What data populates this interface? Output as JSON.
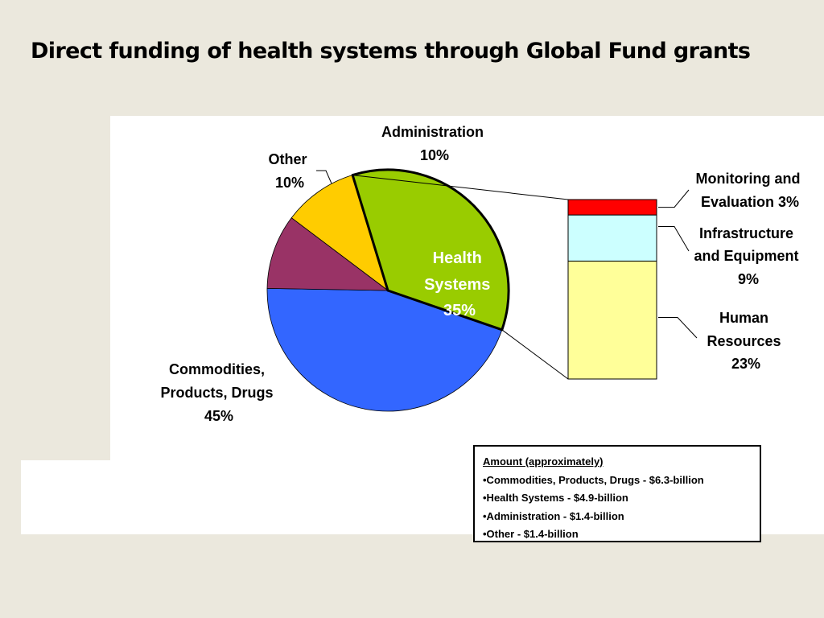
{
  "title": "Direct funding of health systems through Global Fund grants",
  "chart_data": [
    {
      "type": "pie",
      "slices": [
        {
          "name": "Administration",
          "value": 10,
          "label": "10%",
          "color": "#ffcc00"
        },
        {
          "name": "Health Systems",
          "value": 35,
          "label": "35%",
          "color": "#99cc00"
        },
        {
          "name": "Commodities, Products, Drugs",
          "value": 45,
          "label": "45%",
          "color": "#3366ff"
        },
        {
          "name": "Other",
          "value": 10,
          "label": "10%",
          "color": "#993366"
        }
      ]
    },
    {
      "type": "bar",
      "stacked": true,
      "breakdown_of": "Health Systems",
      "series": [
        {
          "name": "Human Resources",
          "value": 23,
          "label": "23%",
          "color": "#ffff99"
        },
        {
          "name": "Infrastructure and Equipment",
          "value": 9,
          "label": "9%",
          "color": "#ccffff"
        },
        {
          "name": "Monitoring and Evaluation",
          "value": 3,
          "label": "3%",
          "color": "#ff0000"
        }
      ]
    }
  ],
  "labels": {
    "admin": [
      "Administration",
      "10%"
    ],
    "other": [
      "Other",
      "10%"
    ],
    "health": [
      "Health",
      "Systems",
      "35%"
    ],
    "commodities": [
      "Commodities,",
      "Products, Drugs",
      "45%"
    ],
    "monitoring": [
      "Monitoring and",
      "Evaluation 3%"
    ],
    "infrastructure": [
      "Infrastructure",
      "and Equipment",
      "9%"
    ],
    "human": [
      "Human",
      "Resources",
      "23%"
    ]
  },
  "amount_box": {
    "header": "Amount (approximately)",
    "items": [
      "•Commodities, Products, Drugs - $6.3-billion",
      "•Health Systems - $4.9-billion",
      "•Administration - $1.4-billion",
      "•Other - $1.4-billion"
    ]
  }
}
